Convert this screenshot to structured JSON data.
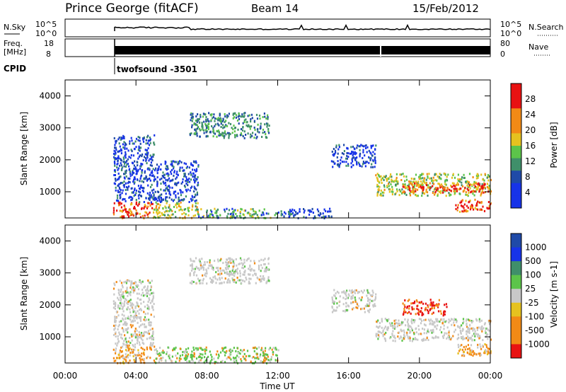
{
  "header": {
    "station": "Prince George (fitACF)",
    "beam": "Beam 14",
    "date": "15/Feb/2012"
  },
  "panels": {
    "nsky": {
      "left_label": "N.Sky",
      "right_label": "N.Search",
      "ticks_left": [
        "10^5",
        "10^0"
      ],
      "ticks_right": [
        "10^5",
        "10^0"
      ]
    },
    "freq": {
      "left_label_1": "Freq.",
      "left_label_2": "[MHz]",
      "ticks_left": [
        "18",
        "8"
      ],
      "right_label": "Nave",
      "ticks_right": [
        "80",
        "0"
      ]
    },
    "cpid": {
      "label": "CPID",
      "program": "twofsound  -3501"
    }
  },
  "colors": {
    "blue": "#1733e8",
    "darkblue": "#1f4aa8",
    "teal": "#3f8f6a",
    "green": "#5cc44a",
    "yellow": "#e6c21f",
    "orange": "#f28a16",
    "red": "#e81212",
    "grey": "#c8c8c8"
  },
  "chart_data": [
    {
      "type": "heatmap",
      "title": "",
      "xlabel": "",
      "ylabel": "Slant Range [km]",
      "xlim": [
        "00:00",
        "24:00"
      ],
      "ylim": [
        180,
        4500
      ],
      "yticks": [
        "1000",
        "2000",
        "3000",
        "4000"
      ],
      "xticks": [
        "00:00",
        "04:00",
        "08:00",
        "12:00",
        "16:00",
        "20:00",
        "00:00"
      ],
      "colorbar": {
        "label": "Power [dB]",
        "ticks": [
          "28",
          "24",
          "20",
          "16",
          "12",
          "8",
          "4"
        ],
        "range": [
          0,
          30
        ]
      },
      "patches": [
        {
          "t": [
            2.7,
            5.0
          ],
          "r": [
            200,
            700
          ],
          "level": "red"
        },
        {
          "t": [
            2.7,
            5.0
          ],
          "r": [
            700,
            2800
          ],
          "level": "blue"
        },
        {
          "t": [
            5.0,
            7.5
          ],
          "r": [
            200,
            700
          ],
          "level": "yellow"
        },
        {
          "t": [
            5.0,
            7.5
          ],
          "r": [
            700,
            2000
          ],
          "level": "blue"
        },
        {
          "t": [
            7.0,
            11.5
          ],
          "r": [
            2700,
            3500
          ],
          "level": "teal"
        },
        {
          "t": [
            7.5,
            12.0
          ],
          "r": [
            200,
            500
          ],
          "level": "green"
        },
        {
          "t": [
            12.0,
            15.0
          ],
          "r": [
            200,
            500
          ],
          "level": "blue"
        },
        {
          "t": [
            15.0,
            17.5
          ],
          "r": [
            1800,
            2500
          ],
          "level": "blue"
        },
        {
          "t": [
            17.5,
            24.0
          ],
          "r": [
            900,
            1600
          ],
          "level": "yellow"
        },
        {
          "t": [
            19.0,
            24.0
          ],
          "r": [
            1000,
            1300
          ],
          "level": "red"
        },
        {
          "t": [
            22.0,
            24.0
          ],
          "r": [
            400,
            800
          ],
          "level": "red"
        }
      ]
    },
    {
      "type": "heatmap",
      "title": "",
      "xlabel": "Time UT",
      "ylabel": "Slant Range [km]",
      "xlim": [
        "00:00",
        "24:00"
      ],
      "ylim": [
        180,
        4500
      ],
      "yticks": [
        "1000",
        "2000",
        "3000",
        "4000"
      ],
      "xticks": [
        "00:00",
        "04:00",
        "08:00",
        "12:00",
        "16:00",
        "20:00",
        "00:00"
      ],
      "colorbar": {
        "label": "Velocity [m s-1]",
        "ticks": [
          "1000",
          "500",
          "100",
          "25",
          "-25",
          "-100",
          "-500",
          "-1000"
        ],
        "range": [
          -1000,
          1000
        ]
      },
      "patches": [
        {
          "t": [
            2.7,
            5.0
          ],
          "r": [
            200,
            700
          ],
          "level": "orange"
        },
        {
          "t": [
            2.7,
            5.0
          ],
          "r": [
            700,
            2800
          ],
          "level": "grey"
        },
        {
          "t": [
            5.0,
            7.5
          ],
          "r": [
            200,
            700
          ],
          "level": "green"
        },
        {
          "t": [
            7.0,
            11.5
          ],
          "r": [
            2700,
            3500
          ],
          "level": "grey"
        },
        {
          "t": [
            7.5,
            12.0
          ],
          "r": [
            200,
            700
          ],
          "level": "green"
        },
        {
          "t": [
            15.0,
            17.5
          ],
          "r": [
            1800,
            2500
          ],
          "level": "grey"
        },
        {
          "t": [
            17.5,
            24.0
          ],
          "r": [
            900,
            1600
          ],
          "level": "grey"
        },
        {
          "t": [
            19.0,
            21.5
          ],
          "r": [
            1700,
            2200
          ],
          "level": "red"
        },
        {
          "t": [
            22.0,
            24.0
          ],
          "r": [
            400,
            800
          ],
          "level": "orange"
        }
      ]
    }
  ]
}
